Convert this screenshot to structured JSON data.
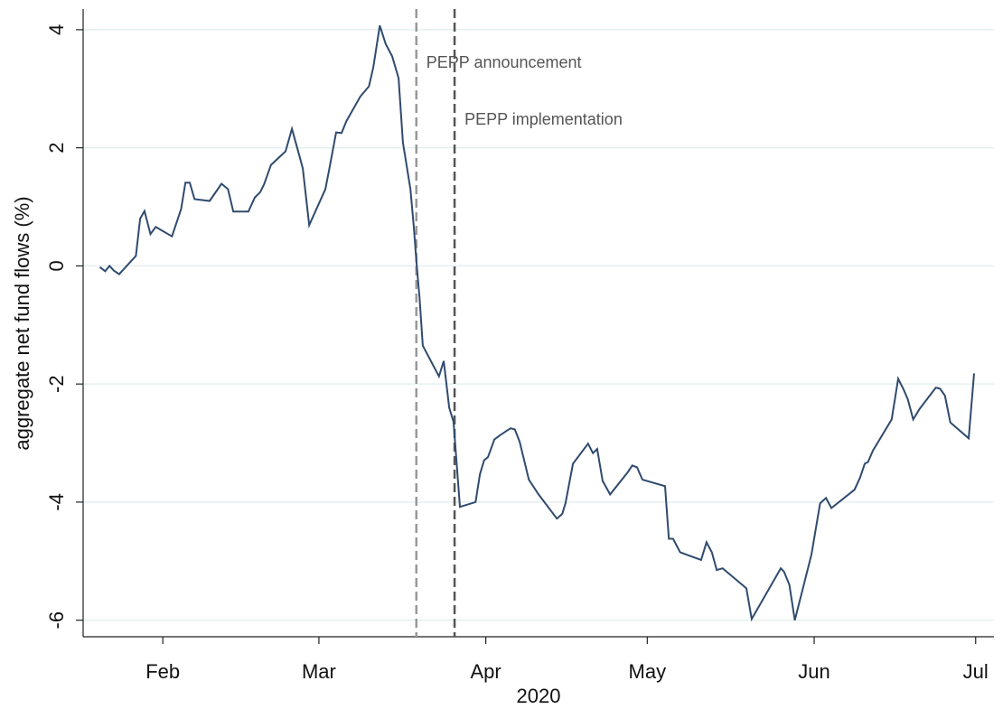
{
  "chart_data": {
    "type": "line",
    "xlabel": "2020",
    "ylabel": "aggregate net fund flows (%)",
    "x": [
      20.3,
      21.3,
      22.1,
      22.9,
      23.9,
      27.0,
      27.8,
      28.6,
      29.7,
      30.7,
      33.7,
      35.4,
      36.2,
      37.0,
      37.9,
      40.7,
      42.9,
      44.1,
      45.1,
      47.9,
      49.1,
      50.1,
      50.8,
      52.1,
      54.8,
      56.0,
      57.0,
      58.0,
      59.2,
      62.2,
      63.0,
      64.2,
      65.2,
      66.1,
      68.7,
      70.3,
      71.1,
      72.3,
      73.4,
      74.6,
      75.8,
      76.6,
      78.0,
      78.6,
      79.1,
      79.7,
      80.3,
      83.3,
      84.2,
      85.2,
      86.0,
      87.2,
      90.1,
      90.9,
      91.7,
      92.4,
      93.6,
      94.6,
      96.6,
      97.4,
      98.3,
      100.0,
      101.8,
      105.2,
      106.2,
      106.8,
      108.2,
      111.0,
      111.9,
      112.7,
      113.7,
      115.1,
      118.4,
      119.2,
      120.1,
      121.1,
      125.3,
      126.0,
      126.8,
      128.1,
      132.0,
      133.0,
      134.0,
      134.9,
      136.0,
      140.4,
      141.4,
      146.8,
      147.4,
      148.4,
      149.4,
      152.5,
      154.1,
      155.2,
      156.2,
      160.5,
      161.5,
      162.4,
      163.0,
      163.9,
      167.4,
      168.6,
      169.6,
      170.4,
      171.4,
      172.6,
      175.6,
      176.4,
      177.3,
      178.3,
      181.7,
      182.7
    ],
    "series": [
      {
        "color": "#2f4b6e",
        "values": [
          -0.02,
          -0.09,
          0,
          -0.08,
          -0.14,
          0.17,
          0.8,
          0.93,
          0.54,
          0.66,
          0.5,
          0.96,
          1.41,
          1.41,
          1.13,
          1.1,
          1.39,
          1.3,
          0.92,
          0.92,
          1.16,
          1.25,
          1.38,
          1.71,
          1.94,
          2.32,
          1.99,
          1.65,
          0.69,
          1.3,
          1.68,
          2.26,
          2.25,
          2.45,
          2.87,
          3.04,
          3.36,
          4.07,
          3.76,
          3.55,
          3.18,
          2.09,
          1.3,
          0.69,
          0.08,
          -0.54,
          -1.35,
          -1.87,
          -1.61,
          -2.4,
          -2.64,
          -4.08,
          -4.0,
          -3.53,
          -3.29,
          -3.24,
          -2.94,
          -2.87,
          -2.75,
          -2.77,
          -2.98,
          -3.62,
          -3.87,
          -4.28,
          -4.2,
          -4.02,
          -3.35,
          -3.01,
          -3.17,
          -3.1,
          -3.64,
          -3.87,
          -3.49,
          -3.38,
          -3.41,
          -3.62,
          -3.73,
          -4.62,
          -4.62,
          -4.85,
          -4.98,
          -4.68,
          -4.85,
          -5.15,
          -5.12,
          -5.46,
          -5.98,
          -5.12,
          -5.18,
          -5.4,
          -6.0,
          -4.89,
          -4.02,
          -3.93,
          -4.1,
          -3.79,
          -3.59,
          -3.35,
          -3.32,
          -3.13,
          -2.6,
          -1.91,
          -2.09,
          -2.26,
          -2.6,
          -2.42,
          -2.06,
          -2.08,
          -2.2,
          -2.65,
          -2.92,
          -1.82
        ]
      }
    ],
    "xlim": [
      17.2,
      186.4
    ],
    "xticks": [
      {
        "value": 32,
        "label": "Feb"
      },
      {
        "value": 61,
        "label": "Mar"
      },
      {
        "value": 92,
        "label": "Apr"
      },
      {
        "value": 122,
        "label": "May"
      },
      {
        "value": 153,
        "label": "Jun"
      },
      {
        "value": 183,
        "label": "Jul"
      }
    ],
    "ylim": [
      -6.28,
      4.35
    ],
    "yticks": [
      -6,
      -4,
      -2,
      0,
      2,
      4
    ],
    "grid": true,
    "vlines": [
      {
        "x": 79.1,
        "label": "PEPP announcement",
        "color": "#999999"
      },
      {
        "x": 86.2,
        "label": "PEPP implementation",
        "color": "#555555"
      }
    ]
  }
}
